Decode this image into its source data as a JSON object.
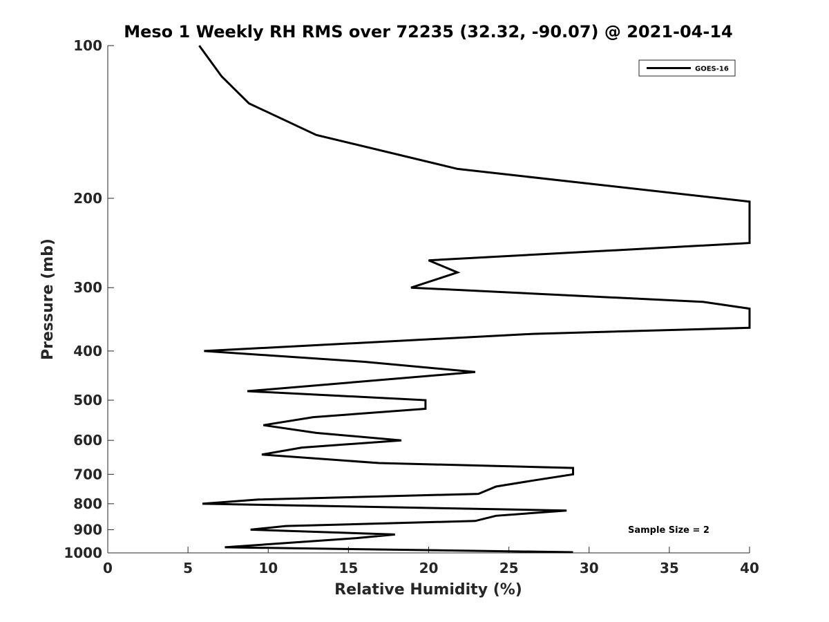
{
  "chart_data": {
    "type": "line",
    "title": "Meso 1 Weekly RH RMS over 72235 (32.32, -90.07) @ 2021-04-14",
    "xlabel": "Relative Humidity (%)",
    "ylabel": "Pressure (mb)",
    "xlim": [
      0,
      40
    ],
    "ylim": [
      1000,
      100
    ],
    "yscale": "log",
    "x_ticks": [
      0,
      5,
      10,
      15,
      20,
      25,
      30,
      35,
      40
    ],
    "y_ticks": [
      100,
      200,
      300,
      400,
      500,
      600,
      700,
      800,
      900,
      1000
    ],
    "grid": false,
    "legend_position": "top-right",
    "annotation": "Sample Size = 2",
    "series": [
      {
        "name": "GOES-16",
        "color": "#000000",
        "points": [
          [
            5.7,
            100
          ],
          [
            7.1,
            115
          ],
          [
            8.8,
            130
          ],
          [
            13.0,
            150
          ],
          [
            21.8,
            175
          ],
          [
            40.0,
            203
          ],
          [
            40.0,
            245
          ],
          [
            20.0,
            265
          ],
          [
            21.8,
            280
          ],
          [
            18.9,
            300
          ],
          [
            37.1,
            320
          ],
          [
            40.0,
            330
          ],
          [
            40.0,
            360
          ],
          [
            26.5,
            370
          ],
          [
            6.0,
            400
          ],
          [
            16.0,
            420
          ],
          [
            22.9,
            440
          ],
          [
            8.7,
            480
          ],
          [
            19.8,
            500
          ],
          [
            19.8,
            520
          ],
          [
            12.8,
            540
          ],
          [
            9.7,
            560
          ],
          [
            13.0,
            580
          ],
          [
            18.3,
            600
          ],
          [
            12.1,
            620
          ],
          [
            9.6,
            640
          ],
          [
            16.9,
            665
          ],
          [
            29.0,
            680
          ],
          [
            29.0,
            700
          ],
          [
            26.5,
            720
          ],
          [
            24.2,
            740
          ],
          [
            23.1,
            765
          ],
          [
            9.4,
            785
          ],
          [
            5.9,
            800
          ],
          [
            28.6,
            825
          ],
          [
            24.2,
            845
          ],
          [
            22.9,
            865
          ],
          [
            11.1,
            885
          ],
          [
            8.9,
            900
          ],
          [
            17.9,
            920
          ],
          [
            15.5,
            935
          ],
          [
            7.3,
            975
          ],
          [
            29.0,
            997
          ]
        ]
      }
    ]
  }
}
